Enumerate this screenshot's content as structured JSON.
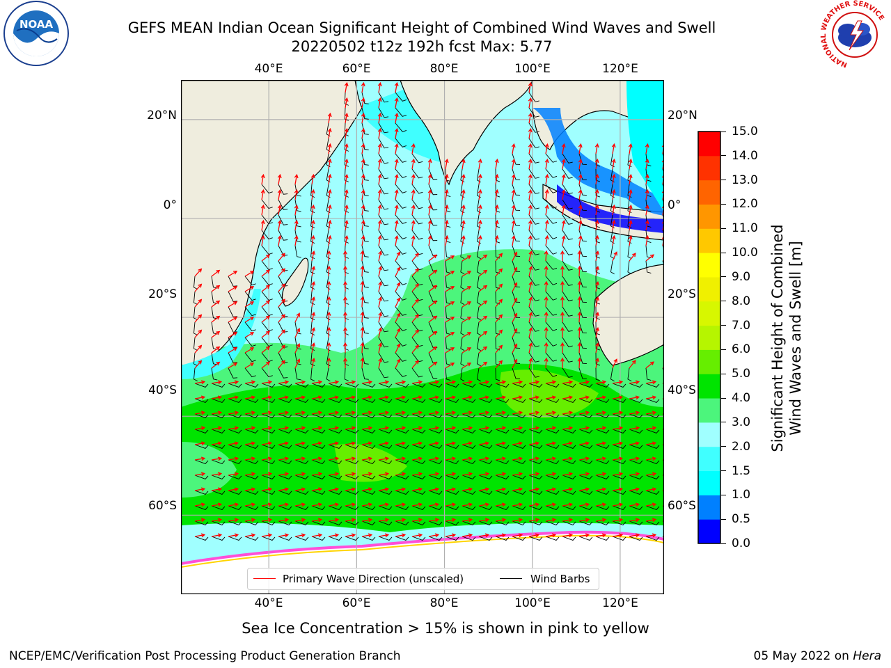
{
  "title": {
    "line1": "GEFS MEAN Indian Ocean Significant Height of Combined Wind Waves and Swell",
    "line2": "20220502 t12z 192h fcst   Max: 5.77"
  },
  "logos": {
    "left": {
      "icon": "noaa-logo-icon",
      "text": "NOAA"
    },
    "right": {
      "icon": "nws-logo-icon",
      "text": "NATIONAL WEATHER SERVICE"
    }
  },
  "map": {
    "lon_ticks_top": [
      "40°E",
      "60°E",
      "80°E",
      "100°E",
      "120°E"
    ],
    "lon_ticks_bottom": [
      "40°E",
      "60°E",
      "80°E",
      "100°E",
      "120°E"
    ],
    "lat_ticks_left": [
      "20°N",
      "0°",
      "20°S",
      "40°S",
      "60°S"
    ],
    "lat_ticks_right": [
      "20°N",
      "0°",
      "20°S",
      "40°S",
      "60°S"
    ],
    "lon_values": [
      40,
      60,
      80,
      100,
      120
    ],
    "lat_values": [
      20,
      0,
      -20,
      -40,
      -60
    ],
    "lon_range": [
      20,
      130
    ],
    "lat_range": [
      -76,
      28
    ],
    "colors": {
      "land": "#efedde",
      "ice": "#ffffff",
      "wave_arrow": "#ff0000",
      "barb": "#000000",
      "grid": "#b0b0b0"
    }
  },
  "legend": {
    "items": [
      {
        "label": "Primary Wave Direction (unscaled)",
        "color": "#ff0000"
      },
      {
        "label": "Wind Barbs",
        "color": "#000000"
      }
    ]
  },
  "colorbar": {
    "label": "Significant Height of Combined\nWind Waves and Swell [m]",
    "ticks": [
      "0.0",
      "0.5",
      "1.0",
      "1.5",
      "2.0",
      "3.0",
      "4.0",
      "5.0",
      "6.0",
      "7.0",
      "8.0",
      "9.0",
      "10.0",
      "11.0",
      "12.0",
      "13.0",
      "14.0",
      "15.0"
    ],
    "colors": [
      "#0000ff",
      "#0080ff",
      "#00ffff",
      "#40ffff",
      "#a0ffff",
      "#4cf57c",
      "#00e400",
      "#66ee00",
      "#b6f500",
      "#d7f700",
      "#f0f000",
      "#ffff00",
      "#ffc800",
      "#ff9600",
      "#ff6400",
      "#ff3200",
      "#ff0000"
    ]
  },
  "caption": "Sea Ice Concentration > 15% is shown in pink to yellow",
  "footer": {
    "left": "NCEP/EMC/Verification Post Processing Product Generation Branch",
    "right_prefix": "05 May 2022 on ",
    "right_host": "Hera"
  }
}
